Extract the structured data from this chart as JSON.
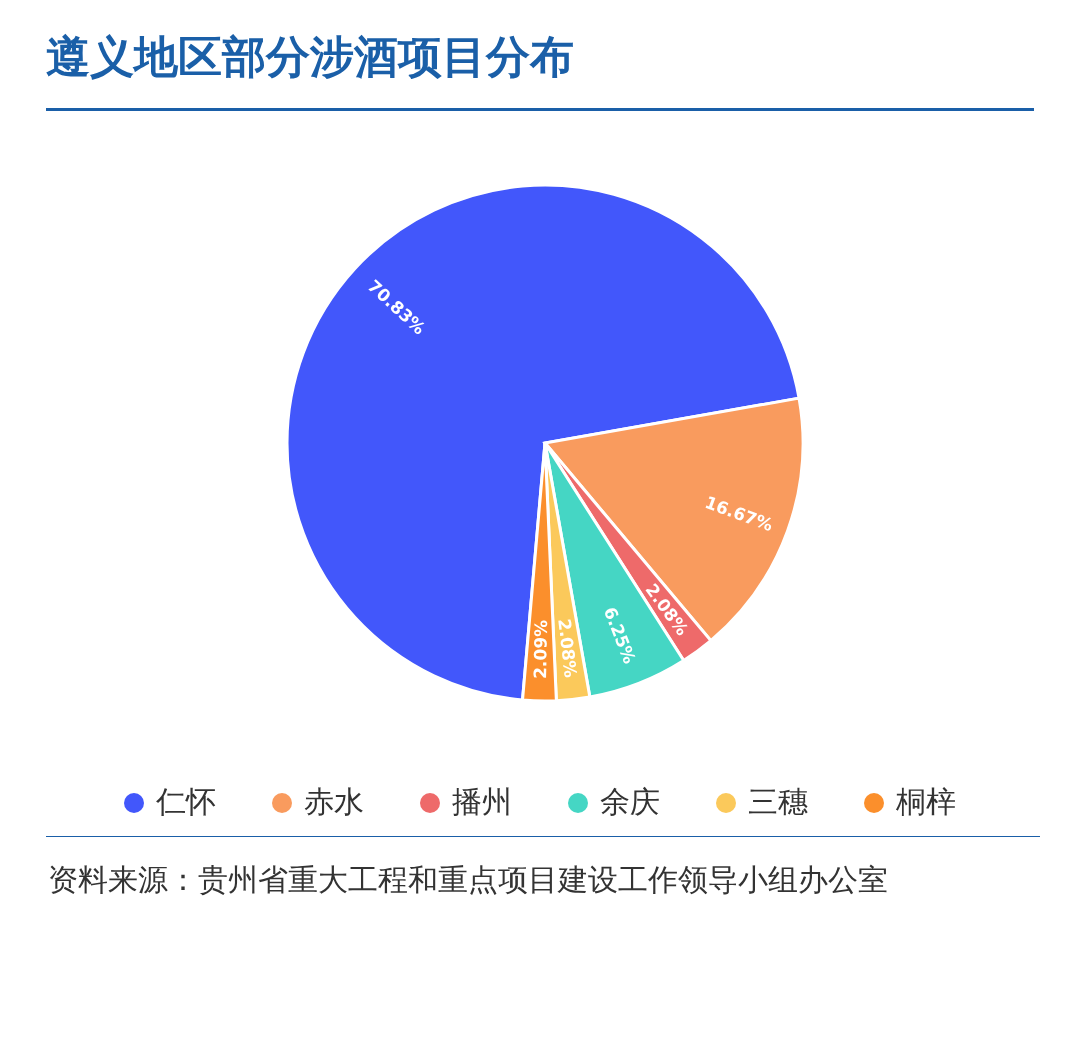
{
  "chart_data": {
    "type": "pie",
    "title": "遵义地区部分涉酒项目分布",
    "categories": [
      "仁怀",
      "赤水",
      "播州",
      "余庆",
      "三穗",
      "桐梓"
    ],
    "values": [
      70.83,
      16.67,
      2.08,
      6.25,
      2.08,
      2.09
    ],
    "colors": [
      "#4257fb",
      "#f99b5e",
      "#ee6a6a",
      "#45d6c4",
      "#fbc95b",
      "#fb8f2c"
    ],
    "value_labels": [
      "70.83%",
      "16.67%",
      "2.08%",
      "6.25%",
      "2.08%",
      "2.09%"
    ],
    "legend": "bottom",
    "annotations": [
      "资料来源：贵州省重大工程和重点项目建设工作领导小组办公室"
    ]
  }
}
